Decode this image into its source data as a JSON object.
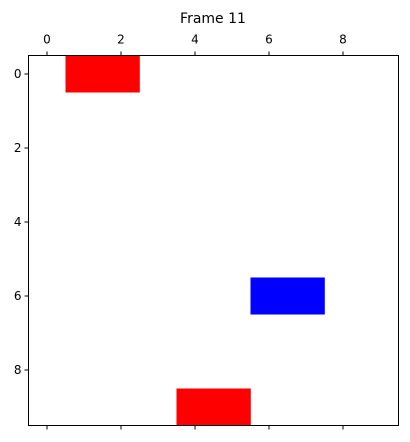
{
  "chart_data": {
    "type": "heatmap",
    "title": "Frame 11",
    "xlabel": "",
    "ylabel": "",
    "xlim": [
      -0.5,
      9.5
    ],
    "ylim": [
      9.5,
      -0.5
    ],
    "xticks": [
      0,
      2,
      4,
      6,
      8
    ],
    "yticks": [
      0,
      2,
      4,
      6,
      8
    ],
    "xtick_labels": [
      "0",
      "2",
      "4",
      "6",
      "8"
    ],
    "ytick_labels": [
      "0",
      "2",
      "4",
      "6",
      "8"
    ],
    "xaxis_position": "top",
    "grid": false,
    "background": "#ffffff",
    "cells": [
      {
        "row": 0,
        "col": 1,
        "color": "#ff0000"
      },
      {
        "row": 0,
        "col": 2,
        "color": "#ff0000"
      },
      {
        "row": 6,
        "col": 6,
        "color": "#0000ff"
      },
      {
        "row": 6,
        "col": 7,
        "color": "#0000ff"
      },
      {
        "row": 9,
        "col": 4,
        "color": "#ff0000"
      },
      {
        "row": 9,
        "col": 5,
        "color": "#ff0000"
      }
    ]
  }
}
